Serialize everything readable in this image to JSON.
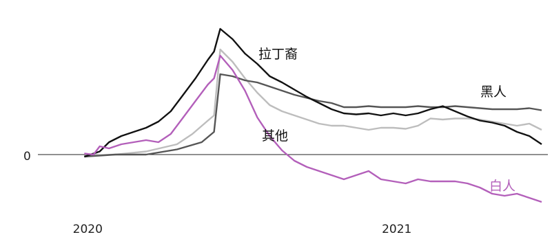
{
  "chart_data": {
    "type": "line",
    "xlim": [
      2019.85,
      2021.5
    ],
    "ylim": [
      -0.5,
      1.3
    ],
    "grid": false,
    "legend": "direct labels",
    "zero_label": "0",
    "x_ticks": [
      {
        "value": 2020,
        "label": "2020"
      },
      {
        "value": 2021,
        "label": "2021"
      }
    ],
    "series": [
      {
        "name": "其他",
        "color": "#bdbdbd",
        "x": [
          2020.0,
          2020.1,
          2020.2,
          2020.3,
          2020.35,
          2020.4,
          2020.42,
          2020.44,
          2020.48,
          2020.52,
          2020.56,
          2020.6,
          2020.64,
          2020.68,
          2020.72,
          2020.76,
          2020.8,
          2020.84,
          2020.88,
          2020.92,
          2020.96,
          2021.0,
          2021.04,
          2021.08,
          2021.12,
          2021.16,
          2021.2,
          2021.24,
          2021.28,
          2021.32,
          2021.36,
          2021.4,
          2021.44,
          2021.48
        ],
        "values": [
          -0.01,
          0.0,
          0.03,
          0.1,
          0.2,
          0.33,
          0.38,
          1.02,
          0.9,
          0.74,
          0.6,
          0.48,
          0.42,
          0.38,
          0.34,
          0.3,
          0.28,
          0.28,
          0.26,
          0.24,
          0.26,
          0.26,
          0.25,
          0.28,
          0.35,
          0.34,
          0.35,
          0.35,
          0.34,
          0.32,
          0.3,
          0.28,
          0.3,
          0.24
        ]
      },
      {
        "name": "黑人",
        "color": "#555555",
        "x": [
          2020.0,
          2020.1,
          2020.2,
          2020.3,
          2020.38,
          2020.42,
          2020.44,
          2020.48,
          2020.52,
          2020.56,
          2020.6,
          2020.64,
          2020.68,
          2020.72,
          2020.76,
          2020.8,
          2020.84,
          2020.88,
          2020.92,
          2020.96,
          2021.0,
          2021.04,
          2021.08,
          2021.12,
          2021.16,
          2021.2,
          2021.24,
          2021.28,
          2021.32,
          2021.36,
          2021.4,
          2021.44,
          2021.48
        ],
        "values": [
          -0.02,
          0.0,
          0.0,
          0.05,
          0.12,
          0.22,
          0.78,
          0.76,
          0.72,
          0.7,
          0.66,
          0.62,
          0.58,
          0.55,
          0.52,
          0.5,
          0.46,
          0.46,
          0.47,
          0.46,
          0.46,
          0.46,
          0.47,
          0.46,
          0.46,
          0.47,
          0.46,
          0.45,
          0.44,
          0.44,
          0.44,
          0.45,
          0.43
        ]
      },
      {
        "name": "拉丁裔",
        "color": "#111111",
        "x": [
          2020.0,
          2020.05,
          2020.08,
          2020.12,
          2020.16,
          2020.2,
          2020.24,
          2020.28,
          2020.32,
          2020.36,
          2020.4,
          2020.42,
          2020.44,
          2020.48,
          2020.52,
          2020.56,
          2020.6,
          2020.64,
          2020.68,
          2020.72,
          2020.76,
          2020.8,
          2020.84,
          2020.88,
          2020.92,
          2020.96,
          2021.0,
          2021.04,
          2021.08,
          2021.12,
          2021.16,
          2021.2,
          2021.24,
          2021.28,
          2021.32,
          2021.36,
          2021.4,
          2021.44,
          2021.48
        ],
        "values": [
          -0.02,
          0.03,
          0.12,
          0.18,
          0.22,
          0.26,
          0.32,
          0.42,
          0.58,
          0.74,
          0.92,
          1.0,
          1.22,
          1.12,
          0.98,
          0.88,
          0.76,
          0.7,
          0.63,
          0.56,
          0.5,
          0.44,
          0.4,
          0.39,
          0.4,
          0.38,
          0.4,
          0.38,
          0.4,
          0.44,
          0.47,
          0.42,
          0.37,
          0.33,
          0.31,
          0.28,
          0.22,
          0.18,
          0.1
        ]
      },
      {
        "name": "白人",
        "color": "#b35fba",
        "x": [
          2020.0,
          2020.03,
          2020.05,
          2020.08,
          2020.12,
          2020.16,
          2020.2,
          2020.24,
          2020.28,
          2020.32,
          2020.36,
          2020.4,
          2020.42,
          2020.44,
          2020.48,
          2020.52,
          2020.56,
          2020.6,
          2020.64,
          2020.68,
          2020.72,
          2020.76,
          2020.8,
          2020.84,
          2020.88,
          2020.92,
          2020.96,
          2021.0,
          2021.04,
          2021.08,
          2021.12,
          2021.16,
          2021.2,
          2021.24,
          2021.28,
          2021.32,
          2021.36,
          2021.4,
          2021.44,
          2021.48
        ],
        "values": [
          0.01,
          0.0,
          0.08,
          0.06,
          0.1,
          0.12,
          0.14,
          0.12,
          0.2,
          0.36,
          0.52,
          0.68,
          0.74,
          0.96,
          0.82,
          0.62,
          0.36,
          0.18,
          0.04,
          -0.06,
          -0.12,
          -0.16,
          -0.2,
          -0.24,
          -0.2,
          -0.16,
          -0.24,
          -0.26,
          -0.28,
          -0.24,
          -0.26,
          -0.26,
          -0.26,
          -0.28,
          -0.32,
          -0.38,
          -0.4,
          -0.38,
          -0.42,
          -0.46
        ]
      }
    ]
  }
}
